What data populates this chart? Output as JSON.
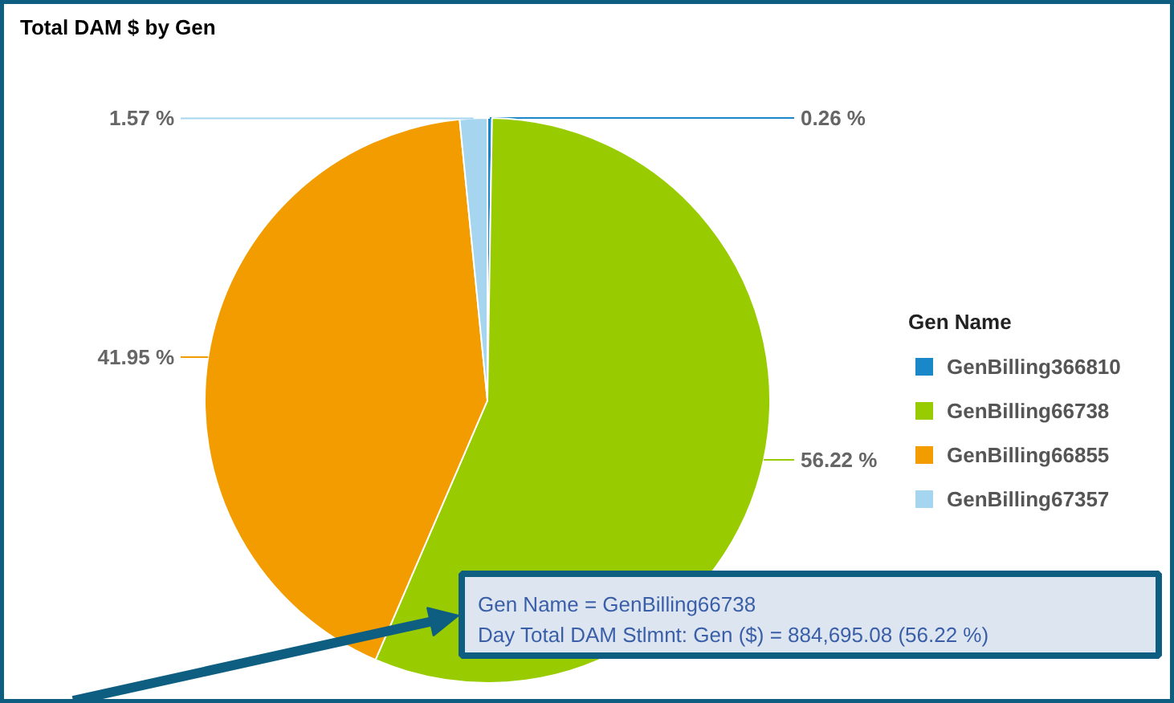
{
  "chart_data": {
    "type": "pie",
    "title": "Total DAM $ by Gen",
    "legend_title": "Gen Name",
    "legend": "right",
    "categories": [
      "GenBilling366810",
      "GenBilling66738",
      "GenBilling66855",
      "GenBilling67357"
    ],
    "values": [
      0.26,
      56.22,
      41.95,
      1.57
    ],
    "colors": [
      "#1a87c9",
      "#99cc00",
      "#f39c00",
      "#a6d5f0"
    ],
    "value_labels": [
      "0.26 %",
      "56.22 %",
      "41.95 %",
      "1.57 %"
    ],
    "annotations": [
      "Gen Name = GenBilling66738",
      "Day Total DAM Stlmnt: Gen ($) = 884,695.08 (56.22 %)"
    ]
  }
}
